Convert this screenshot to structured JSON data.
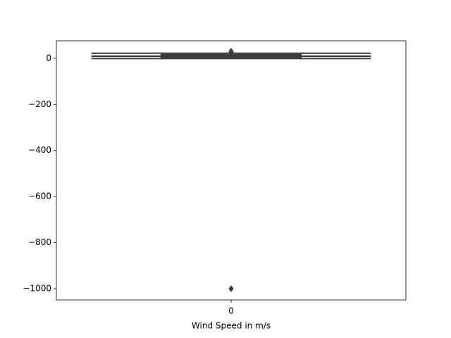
{
  "chart_data": {
    "type": "box",
    "x_label": "Wind Speed in m/s",
    "categories": [
      "0"
    ],
    "boxes": [
      {
        "whislo": -1,
        "q1": 1,
        "med": 9,
        "q3": 16,
        "whishi": 22,
        "fliers": [
          25,
          28,
          31,
          -1000
        ]
      }
    ],
    "color": "#3d3d3d",
    "ylim": [
      -1049,
      76
    ],
    "yticks": [
      0,
      {
        "value": -200,
        "label": "−200"
      },
      {
        "value": -400,
        "label": "−400"
      },
      {
        "value": -600,
        "label": "−600"
      },
      {
        "value": -800,
        "label": "−800"
      },
      {
        "value": -1000,
        "label": "−1000"
      }
    ]
  }
}
